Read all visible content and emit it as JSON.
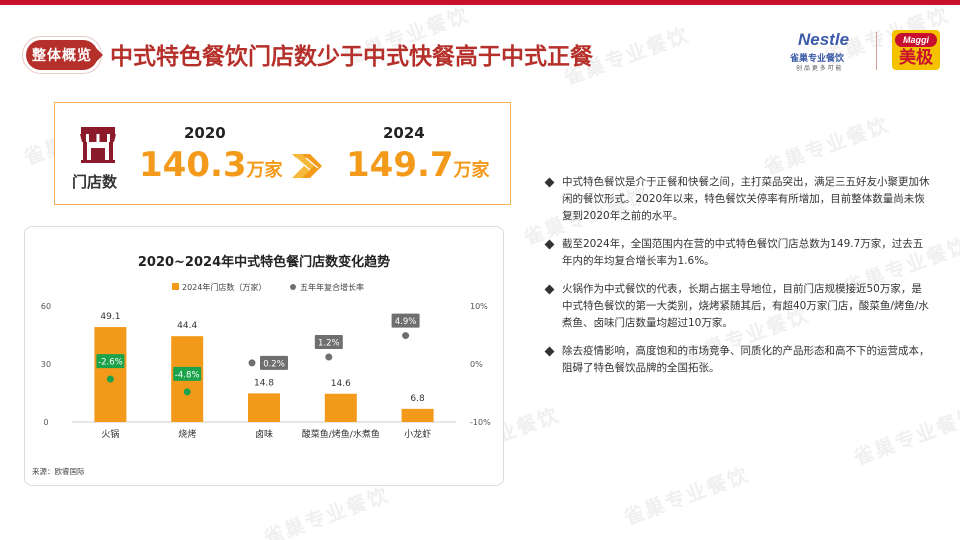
{
  "header": {
    "badge": "整体概览",
    "title": "中式特色餐饮门店数少于中式快餐高于中式正餐"
  },
  "logos": {
    "nestle_word": "Nestle",
    "nestle_sub": "雀巢专业餐饮",
    "nestle_tagline": "创 品 更 多 可 能",
    "maggi_word": "Maggi",
    "maggi_cn": "美极"
  },
  "stats": {
    "icon": "storefront-icon",
    "label": "门店数",
    "year1": "2020",
    "value1": "140.3",
    "unit1": "万家",
    "year2": "2024",
    "value2": "149.7",
    "unit2": "万家",
    "arrow_icon": "double-chevron-arrow-icon"
  },
  "chart_data": {
    "type": "bar",
    "title": "2020~2024年中式特色餐门店数变化趋势",
    "categories": [
      "火锅",
      "烧烤",
      "卤味",
      "酸菜鱼/烤鱼/水煮鱼",
      "小龙虾"
    ],
    "series": [
      {
        "name": "2024年门店数（万家）",
        "type": "bar",
        "axis": "left",
        "values": [
          49.1,
          44.4,
          14.8,
          14.6,
          6.8
        ],
        "labels": [
          "49.1",
          "44.4",
          "14.8",
          "14.6",
          "6.8"
        ],
        "color": "#f39a1a"
      },
      {
        "name": "五年年复合增长率",
        "type": "scatter",
        "axis": "right",
        "values": [
          -2.6,
          -4.8,
          0.2,
          1.2,
          4.9
        ],
        "labels": [
          "-2.6%",
          "-4.8%",
          "0.2%",
          "1.2%",
          "4.9%"
        ],
        "color": "#6f6f6f"
      }
    ],
    "ylim": [
      0,
      60
    ],
    "yticks": [
      "0",
      "30",
      "60"
    ],
    "y2lim": [
      -10,
      10
    ],
    "y2ticks": [
      "-10%",
      "0%",
      "10%"
    ],
    "negative_label_color": "#1aa34a",
    "positive_label_color": "#6f6f6f",
    "legend_position": "top",
    "grid": false,
    "source": "来源：欧睿国际"
  },
  "bullets": [
    "中式特色餐饮是介于正餐和快餐之间，主打菜品突出，满足三五好友小聚更加休闲的餐饮形式。2020年以来，特色餐饮关停率有所增加，目前整体数量尚未恢复到2020年之前的水平。",
    "截至2024年，全国范围内在营的中式特色餐饮门店总数为149.7万家，过去五年内的年均复合增长率为1.6%。",
    "火锅作为中式餐饮的代表，长期占据主导地位，目前门店规模接近50万家，是中式特色餐饮的第一大类别，烧烤紧随其后，有超40万家门店，酸菜鱼/烤鱼/水煮鱼、卤味门店数量均超过10万家。",
    "除去疫情影响，高度饱和的市场竞争、同质化的产品形态和高不下的运营成本，阻碍了特色餐饮品牌的全国拓张。"
  ],
  "watermark": "雀巢专业餐饮",
  "colors": {
    "accent_red": "#b5302a",
    "orange": "#f39a1a",
    "green": "#1aa34a",
    "grey": "#6f6f6f"
  }
}
